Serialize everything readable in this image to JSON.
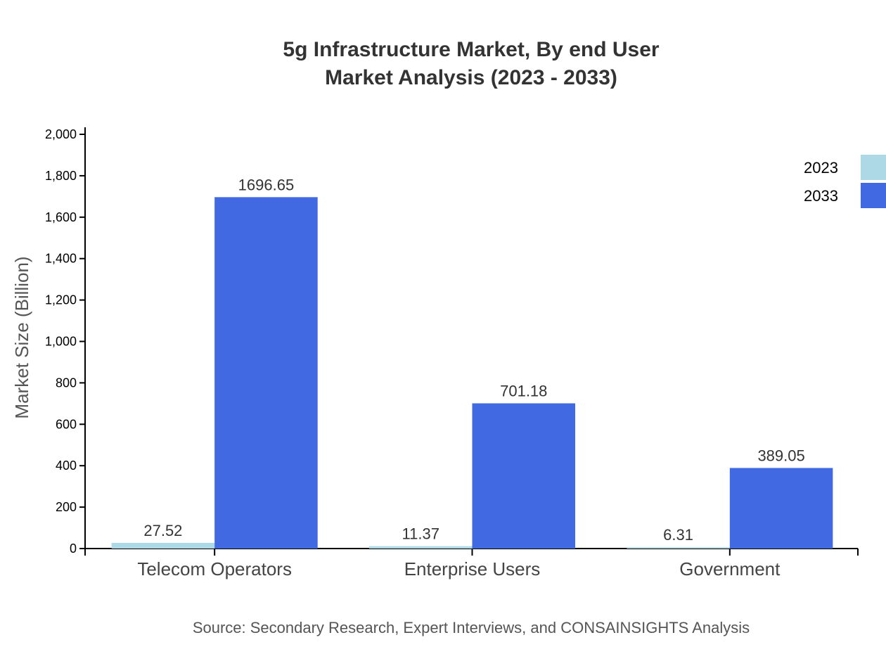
{
  "chart_data": {
    "type": "bar",
    "title": [
      "5g Infrastructure Market, By end User",
      "Market Analysis (2023 - 2033)"
    ],
    "ylabel": "Market Size (Billion)",
    "xlabel": "",
    "categories": [
      "Telecom Operators",
      "Enterprise Users",
      "Government"
    ],
    "series": [
      {
        "name": "2023",
        "color": "#add8e6",
        "values": [
          27.52,
          11.37,
          6.31
        ]
      },
      {
        "name": "2033",
        "color": "#4169e1",
        "values": [
          1696.65,
          701.18,
          389.05
        ]
      }
    ],
    "ylim": [
      0,
      2000
    ],
    "yticks": [
      0,
      200,
      400,
      600,
      800,
      1000,
      1200,
      1400,
      1600,
      1800,
      2000
    ],
    "ytick_labels": [
      "0",
      "200",
      "400",
      "600",
      "800",
      "1,000",
      "1,200",
      "1,400",
      "1,600",
      "1,800",
      "2,000"
    ],
    "grid": false,
    "legend": "top-right",
    "source": "Source: Secondary Research, Expert Interviews, and CONSAINSIGHTS Analysis"
  }
}
